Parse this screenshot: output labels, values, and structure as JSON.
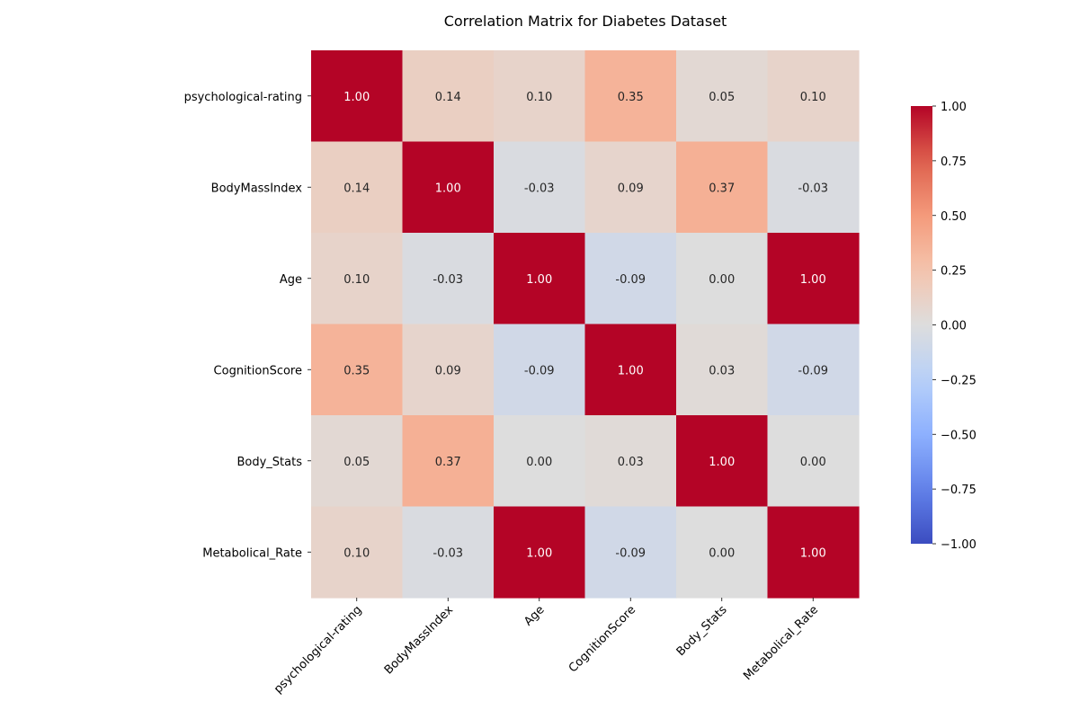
{
  "chart_data": {
    "type": "heatmap",
    "title": "Correlation Matrix for Diabetes Dataset",
    "xlabel": "",
    "ylabel": "",
    "labels": [
      "psychological-rating",
      "BodyMassIndex",
      "Age",
      "CognitionScore",
      "Body_Stats",
      "Metabolical_Rate"
    ],
    "matrix": [
      [
        1.0,
        0.14,
        0.1,
        0.35,
        0.05,
        0.1
      ],
      [
        0.14,
        1.0,
        -0.03,
        0.09,
        0.37,
        -0.03
      ],
      [
        0.1,
        -0.03,
        1.0,
        -0.09,
        0.0,
        1.0
      ],
      [
        0.35,
        0.09,
        -0.09,
        1.0,
        0.03,
        -0.09
      ],
      [
        0.05,
        0.37,
        0.0,
        0.03,
        1.0,
        0.0
      ],
      [
        0.1,
        -0.03,
        1.0,
        -0.09,
        0.0,
        1.0
      ]
    ],
    "colormap": "coolwarm",
    "vmin": -1.0,
    "vmax": 1.0,
    "colorbar_ticks": [
      1.0,
      0.75,
      0.5,
      0.25,
      0.0,
      -0.25,
      -0.5,
      -0.75,
      -1.0
    ],
    "colorbar_tick_labels": [
      "1.00",
      "0.75",
      "0.50",
      "0.25",
      "0.00",
      "−0.25",
      "−0.50",
      "−0.75",
      "−1.00"
    ],
    "annotation_format": "2 decimals",
    "grid": false,
    "legend": "colorbar-right"
  }
}
